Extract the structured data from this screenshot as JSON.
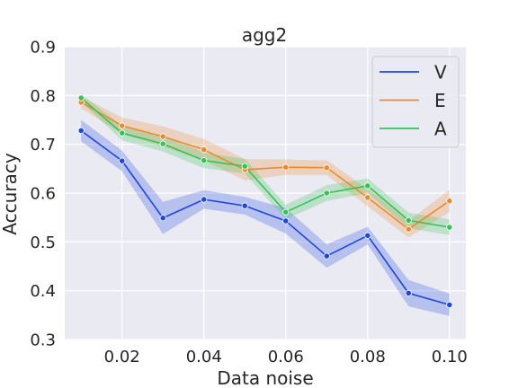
{
  "chart_data": {
    "type": "line",
    "title": "agg2",
    "xlabel": "Data noise",
    "ylabel": "Accuracy",
    "xlim": [
      0.006,
      0.104
    ],
    "ylim": [
      0.3,
      0.9
    ],
    "xticks": [
      0.02,
      0.04,
      0.06,
      0.08,
      0.1
    ],
    "xtick_labels": [
      "0.02",
      "0.04",
      "0.06",
      "0.08",
      "0.10"
    ],
    "yticks": [
      0.3,
      0.4,
      0.5,
      0.6,
      0.7,
      0.8,
      0.9
    ],
    "ytick_labels": [
      "0.3",
      "0.4",
      "0.5",
      "0.6",
      "0.7",
      "0.8",
      "0.9"
    ],
    "grid": true,
    "legend_position": "top-right",
    "x": [
      0.01,
      0.02,
      0.03,
      0.04,
      0.05,
      0.06,
      0.07,
      0.08,
      0.09,
      0.1
    ],
    "series": [
      {
        "name": "V",
        "color": "#1f46e0",
        "values": [
          0.728,
          0.666,
          0.549,
          0.587,
          0.574,
          0.543,
          0.471,
          0.513,
          0.395,
          0.371
        ],
        "ci_lower": [
          0.706,
          0.645,
          0.516,
          0.568,
          0.556,
          0.517,
          0.447,
          0.495,
          0.368,
          0.348
        ],
        "ci_upper": [
          0.75,
          0.687,
          0.582,
          0.606,
          0.592,
          0.569,
          0.495,
          0.531,
          0.422,
          0.394
        ]
      },
      {
        "name": "E",
        "color": "#ee8a2c",
        "values": [
          0.786,
          0.738,
          0.716,
          0.689,
          0.648,
          0.653,
          0.652,
          0.591,
          0.526,
          0.584
        ],
        "ci_lower": [
          0.774,
          0.721,
          0.695,
          0.667,
          0.626,
          0.637,
          0.637,
          0.573,
          0.509,
          0.561
        ],
        "ci_upper": [
          0.798,
          0.755,
          0.737,
          0.711,
          0.67,
          0.669,
          0.667,
          0.609,
          0.543,
          0.607
        ]
      },
      {
        "name": "A",
        "color": "#35c452",
        "values": [
          0.795,
          0.723,
          0.701,
          0.667,
          0.655,
          0.561,
          0.6,
          0.615,
          0.544,
          0.53
        ],
        "ci_lower": [
          0.787,
          0.708,
          0.685,
          0.651,
          0.64,
          0.546,
          0.584,
          0.6,
          0.528,
          0.514
        ],
        "ci_upper": [
          0.803,
          0.738,
          0.717,
          0.683,
          0.67,
          0.576,
          0.616,
          0.63,
          0.56,
          0.546
        ]
      }
    ]
  }
}
